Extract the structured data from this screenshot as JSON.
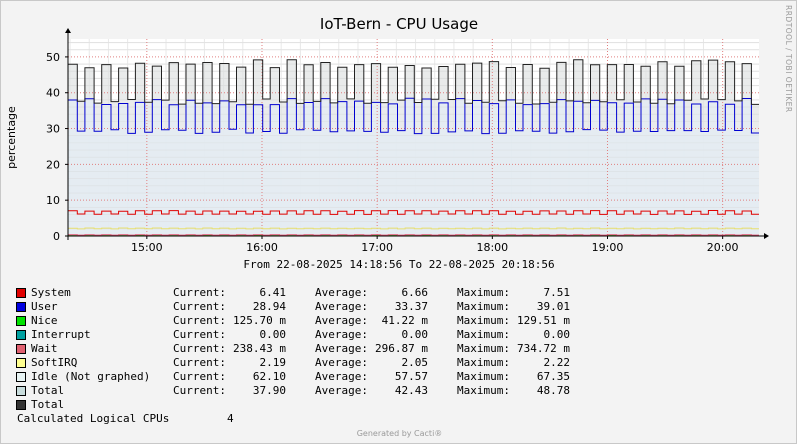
{
  "chart_data": {
    "type": "area",
    "title": "IoT-Bern - CPU Usage",
    "ylabel": "percentage",
    "xlabel": "",
    "ylim": [
      0,
      55
    ],
    "yticks": [
      0,
      10,
      20,
      30,
      40,
      50
    ],
    "x_range": [
      "14:18:56",
      "20:18:56"
    ],
    "x_tick_labels": [
      "15:00",
      "16:00",
      "17:00",
      "18:00",
      "19:00",
      "20:00"
    ],
    "x_tick_hours": [
      15,
      16,
      17,
      18,
      19,
      20
    ],
    "grid": true,
    "date_range_text": "From 22-08-2025 14:18:56 To 22-08-2025 20:18:56",
    "cycle_count": 41,
    "series": [
      {
        "name": "System",
        "color": "#E00000",
        "values": {
          "high": 7.0,
          "low": 6.1
        }
      },
      {
        "name": "User",
        "color": "#0000D0",
        "values": {
          "high": 37.5,
          "low": 29.2
        }
      },
      {
        "name": "Nice",
        "color": "#00E000",
        "values": {
          "high": 0.12,
          "low": 0.04
        }
      },
      {
        "name": "Wait",
        "color": "#E05070",
        "values": {
          "high": 0.35,
          "low": 0.25
        }
      },
      {
        "name": "SoftIRQ",
        "color": "#FFFF80",
        "values": {
          "high": 2.2,
          "low": 2.0
        }
      },
      {
        "name": "Total",
        "color": "#222222",
        "values": {
          "high": 48.0,
          "low": 37.5
        }
      }
    ]
  },
  "legend": {
    "rows": [
      {
        "color": "#E00000",
        "name": "System",
        "current": "6.41",
        "average": "6.66",
        "maximum": "7.51"
      },
      {
        "color": "#0000E0",
        "name": "User",
        "current": "28.94",
        "average": "33.37",
        "maximum": "39.01"
      },
      {
        "color": "#00E000",
        "name": "Nice",
        "current": "125.70 m",
        "average": "41.22 m",
        "maximum": "129.51 m"
      },
      {
        "color": "#00A0A0",
        "name": "Interrupt",
        "current": "0.00",
        "average": "0.00",
        "maximum": "0.00"
      },
      {
        "color": "#E06070",
        "name": "Wait",
        "current": "238.43 m",
        "average": "296.87 m",
        "maximum": "734.72 m"
      },
      {
        "color": "#FFFF90",
        "name": "SoftIRQ",
        "current": "2.19",
        "average": "2.05",
        "maximum": "2.22"
      },
      {
        "color": "#E8F4F4",
        "name": "Idle (Not graphed)",
        "current": "62.10",
        "average": "57.57",
        "maximum": "67.35"
      },
      {
        "color": "#C8DCDC",
        "name": "Total",
        "current": "37.90",
        "average": "42.43",
        "maximum": "48.78"
      },
      {
        "color": "#333333",
        "name": "Total",
        "current": "",
        "average": "",
        "maximum": ""
      }
    ],
    "current_label": "Current:",
    "average_label": "Average:",
    "maximum_label": "Maximum:",
    "logical_cpus_label": "Calculated Logical CPUs",
    "logical_cpus_value": "4"
  },
  "footer": "Generated by Cacti®",
  "side_text": "RRDTOOL / TOBI OETIKER"
}
